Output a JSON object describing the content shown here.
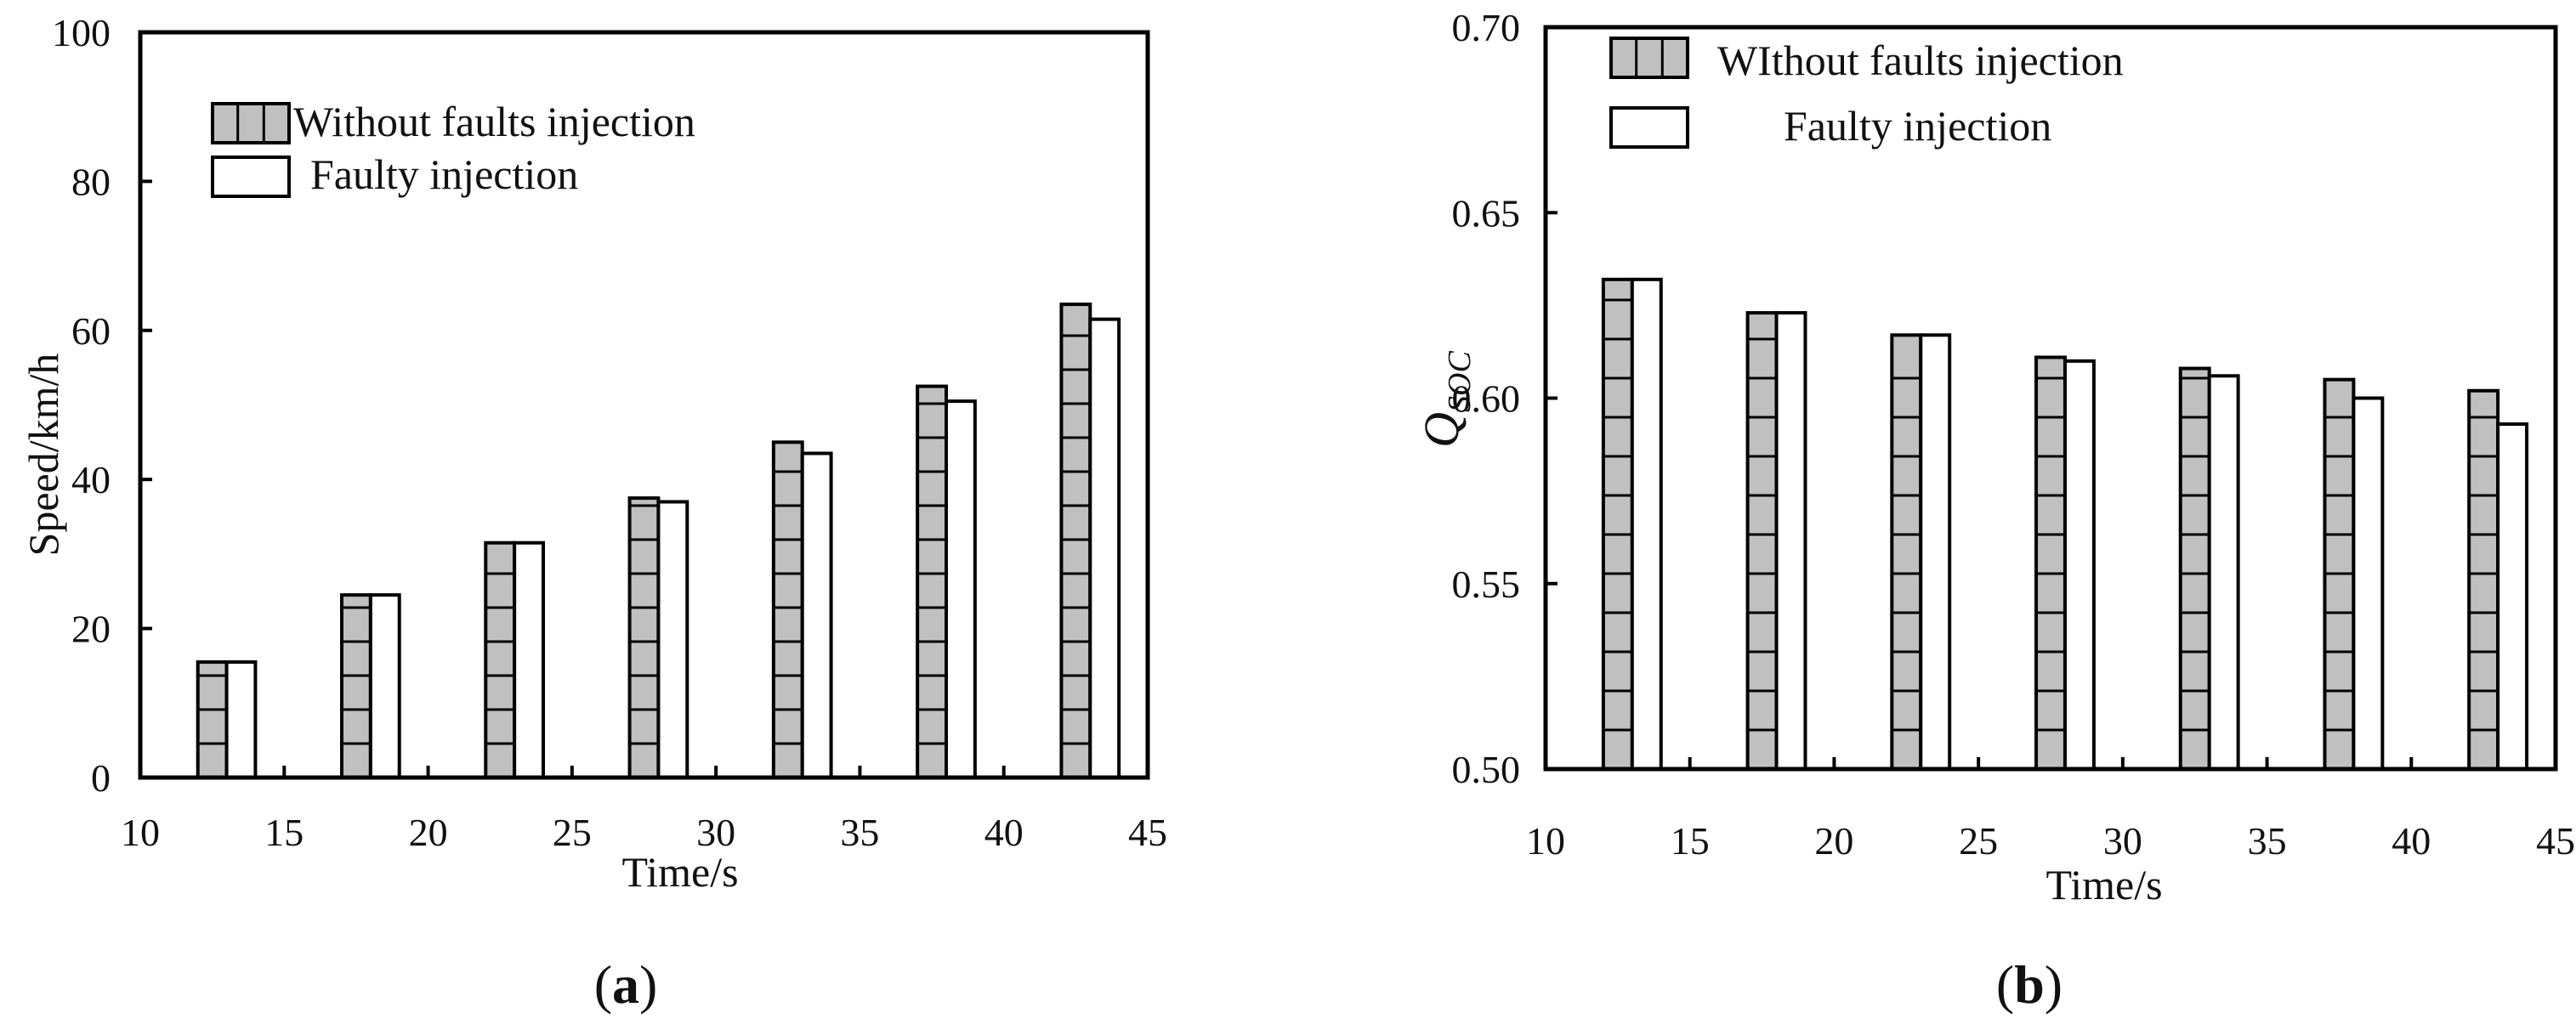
{
  "chart_data": [
    {
      "type": "bar",
      "panel_label": "a",
      "title": "",
      "xlabel": "Time/s",
      "ylabel": "Speed/km/h",
      "xlim": [
        10,
        45
      ],
      "ylim": [
        0,
        100
      ],
      "xticks": [
        10,
        15,
        20,
        25,
        30,
        35,
        40,
        45
      ],
      "yticks": [
        0,
        20,
        40,
        60,
        80,
        100
      ],
      "x": [
        13,
        18,
        23,
        28,
        33,
        38,
        43
      ],
      "bar_width": 1,
      "legend_position": "top-left",
      "series": [
        {
          "name": "Without faults injection",
          "values": [
            15.5,
            24.5,
            31.5,
            37.5,
            45,
            52.5,
            63.5
          ],
          "fill": "#c0c0c0",
          "pattern": "horizontal-lines"
        },
        {
          "name": "Faulty injection",
          "values": [
            15.5,
            24.5,
            31.5,
            37,
            43.5,
            50.5,
            61.5
          ],
          "fill": "#ffffff",
          "pattern": "none"
        }
      ]
    },
    {
      "type": "bar",
      "panel_label": "b",
      "title": "",
      "xlabel": "Time/s",
      "ylabel": "Q",
      "ylabel_subscript": "SOC",
      "xlim": [
        10,
        45
      ],
      "ylim": [
        0.5,
        0.7
      ],
      "xticks": [
        10,
        15,
        20,
        25,
        30,
        35,
        40,
        45
      ],
      "yticks": [
        "0.50",
        "0.55",
        "0.60",
        "0.65",
        "0.70"
      ],
      "x": [
        13,
        18,
        23,
        28,
        33,
        38,
        43
      ],
      "bar_width": 1,
      "legend_position": "top-left",
      "series": [
        {
          "name": "WIthout faults injection",
          "values": [
            0.632,
            0.623,
            0.617,
            0.611,
            0.608,
            0.605,
            0.602
          ],
          "fill": "#c0c0c0",
          "pattern": "horizontal-lines"
        },
        {
          "name": "Faulty injection",
          "values": [
            0.632,
            0.623,
            0.617,
            0.61,
            0.606,
            0.6,
            0.593
          ],
          "fill": "#ffffff",
          "pattern": "none"
        }
      ]
    }
  ]
}
